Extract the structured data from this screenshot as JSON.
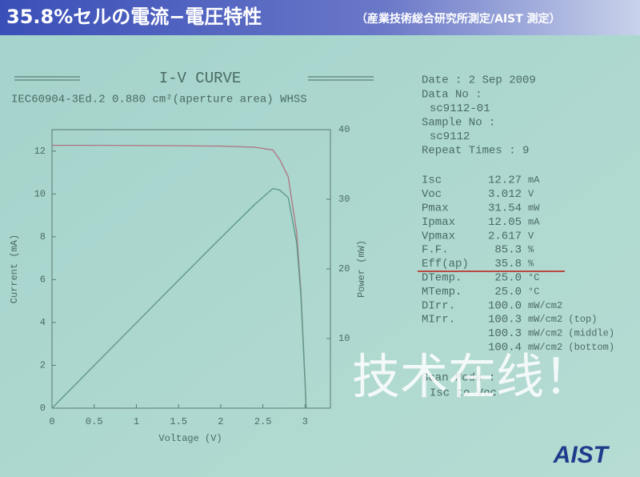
{
  "header": {
    "title": "35.8%セルの電流−電圧特性",
    "subtitle": "（産業技術総合研究所測定/AIST 測定）"
  },
  "chart_data": {
    "type": "line",
    "title": "I-V CURVE",
    "subtitle": "IEC60904-3Ed.2 0.880 cm²(aperture area) WHSS",
    "x_label": "Voltage (V)",
    "y_label": "Current (mA)",
    "y2_label": "Power (mW)",
    "x": [
      0,
      0.5,
      1,
      1.5,
      2,
      2.4,
      2.617,
      2.7,
      2.8,
      2.9,
      2.95,
      3.0,
      3.012
    ],
    "series": [
      {
        "color": "#b07a86",
        "values": [
          12.27,
          12.27,
          12.26,
          12.25,
          12.23,
          12.18,
          12.05,
          11.6,
          10.8,
          8.2,
          5.5,
          1.2,
          0
        ]
      },
      {
        "color": "#5f9a8a",
        "axis": "y2",
        "values": [
          0,
          6.14,
          12.26,
          18.38,
          24.46,
          29.23,
          31.54,
          31.32,
          30.24,
          23.78,
          16.23,
          3.6,
          0
        ]
      }
    ],
    "xlim": [
      0,
      3.3
    ],
    "xticks": [
      0,
      0.5,
      1,
      1.5,
      2,
      2.5,
      3
    ],
    "ylim": [
      0,
      13
    ],
    "yticks": [
      0,
      2,
      4,
      6,
      8,
      10,
      12
    ],
    "y2lim": [
      0,
      40
    ],
    "y2ticks": [
      10,
      20,
      30,
      40
    ]
  },
  "info": {
    "header": [
      "Date : 2 Sep 2009",
      "Data No :",
      "sc9112-01",
      "Sample No :",
      "sc9112",
      "Repeat Times : 9"
    ],
    "params": [
      {
        "label": "Isc",
        "value": "12.27",
        "unit": "mA"
      },
      {
        "label": "Voc",
        "value": "3.012",
        "unit": "V"
      },
      {
        "label": "Pmax",
        "value": "31.54",
        "unit": "mW"
      },
      {
        "label": "Ipmax",
        "value": "12.05",
        "unit": "mA"
      },
      {
        "label": "Vpmax",
        "value": "2.617",
        "unit": "V"
      },
      {
        "label": "F.F.",
        "value": "85.3",
        "unit": "%"
      },
      {
        "label": "Eff(ap)",
        "value": "35.8",
        "unit": "%"
      },
      {
        "label": "DTemp.",
        "value": "25.0",
        "unit": "°C"
      },
      {
        "label": "MTemp.",
        "value": "25.0",
        "unit": "°C"
      },
      {
        "label": "DIrr.",
        "value": "100.0",
        "unit": "mW/cm2"
      },
      {
        "label": "MIrr.",
        "value": "100.3",
        "unit": "mW/cm2 (top)"
      },
      {
        "value": "100.3",
        "unit": "mW/cm2 (middle)"
      },
      {
        "value": "100.4",
        "unit": "mW/cm2 (bottom)"
      }
    ],
    "scan": [
      "Scan Mode :",
      "Isc to Voc"
    ]
  },
  "watermark": "技术在线！",
  "logo": "AIST"
}
